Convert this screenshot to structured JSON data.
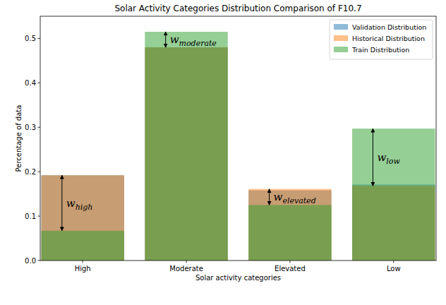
{
  "chart_data": {
    "type": "bar",
    "title": "Solar Activity Categories Distribution Comparison of F10.7",
    "x_label": "Solar activity categories",
    "y_label": "Percentage of data",
    "categories": [
      "High",
      "Moderate",
      "Elevated",
      "Low"
    ],
    "series": [
      {
        "name": "Validation Distribution",
        "color": "#1f77b4",
        "values": [
          0.192,
          0.48,
          0.158,
          0.171
        ]
      },
      {
        "name": "Historical Distribution",
        "color": "#ff7f0e",
        "values": [
          0.192,
          0.48,
          0.161,
          0.168
        ]
      },
      {
        "name": "Train Distribution",
        "color": "#2ca02c",
        "values": [
          0.067,
          0.515,
          0.125,
          0.297
        ]
      }
    ],
    "ylim": [
      0,
      0.55
    ],
    "yticks": [
      {
        "value": 0,
        "label": "0.0"
      },
      {
        "value": 0.1,
        "label": "0.1"
      },
      {
        "value": 0.2,
        "label": "0.2"
      },
      {
        "value": 0.3,
        "label": "0.3"
      },
      {
        "value": 0.4,
        "label": "0.4"
      },
      {
        "value": 0.5,
        "label": "0.5"
      }
    ],
    "grid": false,
    "legend": "upper right",
    "annotations": [
      {
        "text": "w",
        "subscript": "high",
        "category": "High",
        "from": 0.067,
        "to": 0.192
      },
      {
        "text": "w",
        "subscript": "moderate",
        "category": "Moderate",
        "from": 0.48,
        "to": 0.515
      },
      {
        "text": "w",
        "subscript": "elevated",
        "category": "Elevated",
        "from": 0.125,
        "to": 0.161
      },
      {
        "text": "w",
        "subscript": "low",
        "category": "Low",
        "from": 0.168,
        "to": 0.297
      }
    ]
  }
}
